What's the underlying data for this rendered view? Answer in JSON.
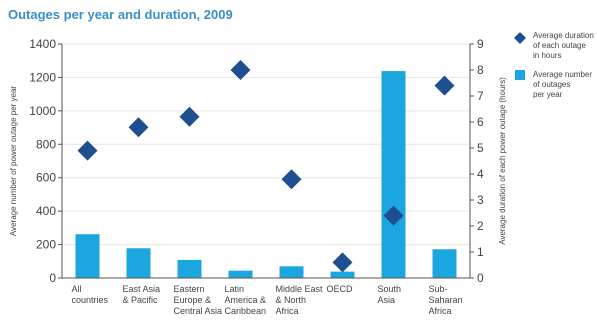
{
  "chart_data": {
    "type": "bar",
    "title": "Outages per year and duration, 2009",
    "categories": [
      [
        "All",
        "countries"
      ],
      [
        "East Asia",
        "& Pacific"
      ],
      [
        "Eastern",
        "Europe &",
        "Central Asia"
      ],
      [
        "Latin",
        "America &",
        "Caribbean"
      ],
      [
        "Middle East",
        "& North",
        "Africa"
      ],
      [
        "OECD"
      ],
      [
        "South",
        "Asia"
      ],
      [
        "Sub-",
        "Saharan",
        "Africa"
      ]
    ],
    "series": [
      {
        "name": [
          "Average number",
          "of outages",
          "per year"
        ],
        "type": "bar",
        "axis": "left",
        "color": "#1ba6df",
        "values": [
          262,
          178,
          108,
          44,
          70,
          38,
          1238,
          172
        ]
      },
      {
        "name": [
          "Average duration",
          "of each outage",
          "in hours"
        ],
        "type": "scatter",
        "marker": "diamond",
        "axis": "right",
        "color": "#1d4f91",
        "values": [
          4.9,
          5.8,
          6.2,
          8.0,
          3.8,
          0.6,
          2.4,
          7.4
        ]
      }
    ],
    "ylabel_left": "Average number of power outage per year",
    "ylabel_right": "Average duration of each power outage (hours)",
    "ylim_left": [
      0,
      1400
    ],
    "yticks_left": [
      0,
      200,
      400,
      600,
      800,
      1000,
      1200,
      1400
    ],
    "ylim_right": [
      0,
      9
    ],
    "yticks_right": [
      0,
      1,
      2,
      3,
      4,
      5,
      6,
      7,
      8,
      9
    ],
    "grid": true,
    "legend": "right"
  }
}
